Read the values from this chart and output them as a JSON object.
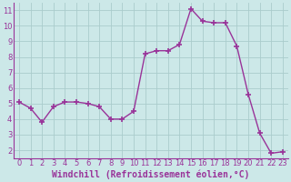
{
  "x": [
    0,
    1,
    2,
    3,
    4,
    5,
    6,
    7,
    8,
    9,
    10,
    11,
    12,
    13,
    14,
    15,
    16,
    17,
    18,
    19,
    20,
    21,
    22,
    23
  ],
  "y": [
    5.1,
    4.7,
    3.8,
    4.8,
    5.1,
    5.1,
    5.0,
    4.8,
    4.0,
    4.0,
    4.5,
    8.2,
    8.4,
    8.4,
    8.8,
    11.1,
    10.3,
    10.2,
    10.2,
    8.7,
    5.6,
    3.1,
    1.8,
    1.9
  ],
  "line_color": "#993399",
  "marker": "+",
  "markersize": 4,
  "linewidth": 1.0,
  "xlabel": "Windchill (Refroidissement éolien,°C)",
  "xlabel_fontsize": 7,
  "tick_fontsize": 6,
  "background_color": "#cce8e8",
  "grid_color": "#aacccc",
  "spine_color": "#993399",
  "tick_color": "#993399",
  "label_color": "#993399",
  "ylim": [
    1.5,
    11.5
  ],
  "xlim": [
    -0.5,
    23.5
  ],
  "yticks": [
    2,
    3,
    4,
    5,
    6,
    7,
    8,
    9,
    10,
    11
  ],
  "xticks": [
    0,
    1,
    2,
    3,
    4,
    5,
    6,
    7,
    8,
    9,
    10,
    11,
    12,
    13,
    14,
    15,
    16,
    17,
    18,
    19,
    20,
    21,
    22,
    23
  ]
}
